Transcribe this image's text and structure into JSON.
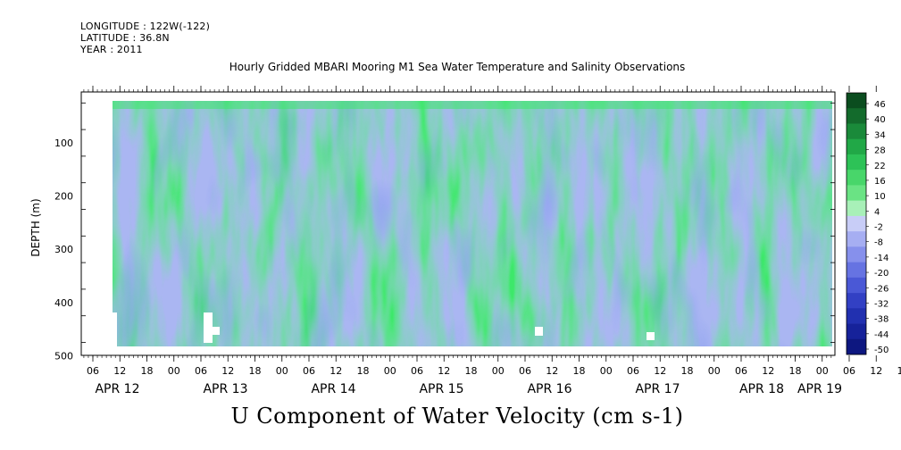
{
  "header": {
    "longitude": "LONGITUDE : 122W(-122)",
    "latitude": "LATITUDE : 36.8N",
    "year": "YEAR : 2011"
  },
  "chart_data": {
    "type": "heatmap",
    "title": "Hourly Gridded MBARI Mooring M1 Sea Water Temperature and Salinity Observations",
    "bottom_title": "U Component of Water Velocity (cm s-1)",
    "ylabel": "DEPTH (m)",
    "y_axis": {
      "inverted": true,
      "ylim": [
        10,
        500
      ],
      "ticks": [
        100,
        200,
        300,
        400,
        500
      ]
    },
    "x_axis": {
      "hour_ticks": [
        "06",
        "12",
        "18",
        "00",
        "06",
        "12",
        "18",
        "00",
        "06",
        "12",
        "18",
        "00",
        "06",
        "12",
        "18",
        "00",
        "06",
        "12",
        "18",
        "00",
        "06",
        "12",
        "18",
        "00",
        "06",
        "12",
        "18",
        "00",
        "06",
        "12",
        "18",
        "00"
      ],
      "day_labels": [
        "APR 12",
        "APR 13",
        "APR 14",
        "APR 15",
        "APR 16",
        "APR 17",
        "APR 18",
        "APR 19"
      ]
    },
    "colorbar": {
      "levels": [
        "46",
        "40",
        "34",
        "28",
        "22",
        "16",
        "10",
        "4",
        "-2",
        "-8",
        "-14",
        "-20",
        "-26",
        "-32",
        "-38",
        "-44",
        "-50"
      ],
      "colors": [
        "#0b4d1f",
        "#136b2c",
        "#1a8a3a",
        "#21a847",
        "#2dc257",
        "#48d66a",
        "#6ae384",
        "#a8f0b8",
        "#c8cdf7",
        "#a6aef2",
        "#8690ec",
        "#6673e2",
        "#4a58d6",
        "#3240c4",
        "#2130b0",
        "#16229a",
        "#0d1780"
      ]
    }
  }
}
